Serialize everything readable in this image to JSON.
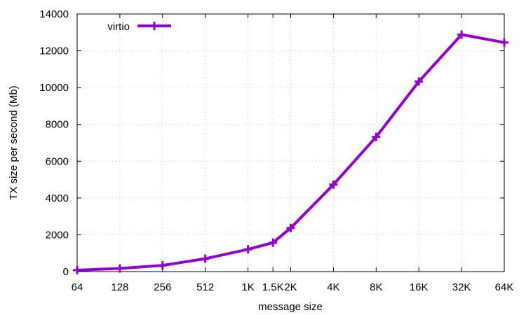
{
  "chart_data": {
    "type": "line",
    "xlabel": "message size",
    "ylabel": "TX size per second (Mb)",
    "x_scale": "log2",
    "categories": [
      "64",
      "128",
      "256",
      "512",
      "1K",
      "1.5K",
      "2K",
      "4K",
      "8K",
      "16K",
      "32K",
      "64K"
    ],
    "x": [
      64,
      128,
      256,
      512,
      1024,
      1536,
      2048,
      4096,
      8192,
      16384,
      32768,
      65536
    ],
    "ylim": [
      0,
      14000
    ],
    "yticks": [
      "0",
      "2000",
      "4000",
      "6000",
      "8000",
      "10000",
      "12000",
      "14000"
    ],
    "grid": true,
    "legend": "top-left",
    "series": [
      {
        "name": "virtio",
        "color": "#9400d3",
        "marker": "plus",
        "values": [
          80,
          170,
          340,
          700,
          1210,
          1570,
          2370,
          4730,
          7320,
          10330,
          12880,
          12450
        ]
      }
    ]
  }
}
